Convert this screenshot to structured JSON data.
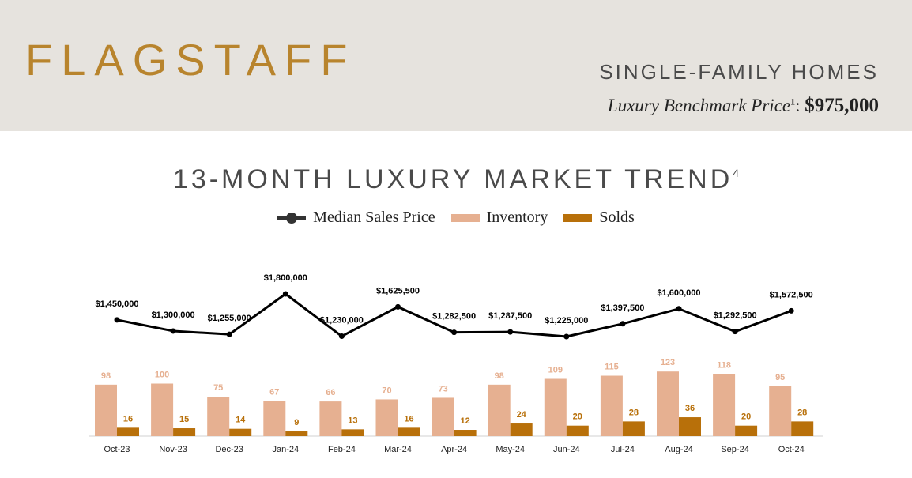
{
  "header": {
    "city": "FLAGSTAFF",
    "segment": "SINGLE-FAMILY HOMES",
    "benchmark_label": "Luxury Benchmark Price",
    "benchmark_sup": "1",
    "benchmark_value": "$975,000"
  },
  "colors": {
    "header_bg": "#e6e3de",
    "accent": "#b8842d",
    "price_line": "#000000",
    "inventory": "#e6b091",
    "solds": "#b8700a"
  },
  "chart_data": {
    "type": "bar",
    "title": "13-MONTH LUXURY MARKET TREND",
    "title_sup": "4",
    "categories": [
      "Oct-23",
      "Nov-23",
      "Dec-23",
      "Jan-24",
      "Feb-24",
      "Mar-24",
      "Apr-24",
      "May-24",
      "Jun-24",
      "Jul-24",
      "Aug-24",
      "Sep-24",
      "Oct-24"
    ],
    "series": [
      {
        "name": "Median Sales Price",
        "type": "line",
        "values": [
          1450000,
          1300000,
          1255000,
          1800000,
          1230000,
          1625500,
          1282500,
          1287500,
          1225000,
          1397500,
          1600000,
          1292500,
          1572500
        ],
        "labels": [
          "$1,450,000",
          "$1,300,000",
          "$1,255,000",
          "$1,800,000",
          "$1,230,000",
          "$1,625,500",
          "$1,282,500",
          "$1,287,500",
          "$1,225,000",
          "$1,397,500",
          "$1,600,000",
          "$1,292,500",
          "$1,572,500"
        ]
      },
      {
        "name": "Inventory",
        "type": "bar",
        "values": [
          98,
          100,
          75,
          67,
          66,
          70,
          73,
          98,
          109,
          115,
          123,
          118,
          95
        ]
      },
      {
        "name": "Solds",
        "type": "bar",
        "values": [
          16,
          15,
          14,
          9,
          13,
          16,
          12,
          24,
          20,
          28,
          36,
          20,
          28
        ]
      }
    ],
    "legend_position": "top-center",
    "grid": false
  }
}
